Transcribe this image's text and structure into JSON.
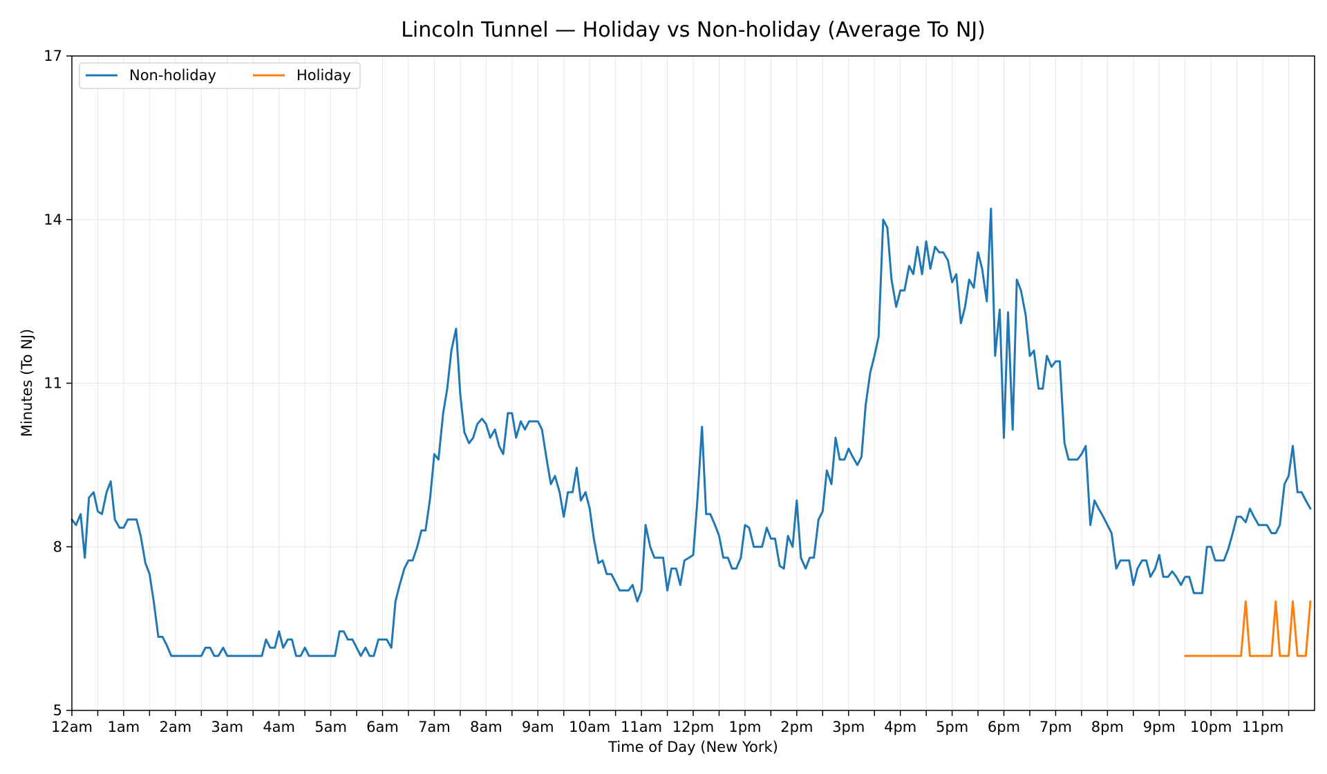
{
  "chart_data": {
    "type": "line",
    "title": "Lincoln Tunnel — Holiday vs Non-holiday (Average To NJ)",
    "xlabel": "Time of Day (New York)",
    "ylabel": "Minutes (To NJ)",
    "xlim": [
      0,
      24
    ],
    "ylim": [
      5,
      17
    ],
    "yticks": [
      5,
      8,
      11,
      14,
      17
    ],
    "xticks": [
      {
        "hour": 0,
        "label": "12am"
      },
      {
        "hour": 1,
        "label": "1am"
      },
      {
        "hour": 2,
        "label": "2am"
      },
      {
        "hour": 3,
        "label": "3am"
      },
      {
        "hour": 4,
        "label": "4am"
      },
      {
        "hour": 5,
        "label": "5am"
      },
      {
        "hour": 6,
        "label": "6am"
      },
      {
        "hour": 7,
        "label": "7am"
      },
      {
        "hour": 8,
        "label": "8am"
      },
      {
        "hour": 9,
        "label": "9am"
      },
      {
        "hour": 10,
        "label": "10am"
      },
      {
        "hour": 11,
        "label": "11am"
      },
      {
        "hour": 12,
        "label": "12pm"
      },
      {
        "hour": 13,
        "label": "1pm"
      },
      {
        "hour": 14,
        "label": "2pm"
      },
      {
        "hour": 15,
        "label": "3pm"
      },
      {
        "hour": 16,
        "label": "4pm"
      },
      {
        "hour": 17,
        "label": "5pm"
      },
      {
        "hour": 18,
        "label": "6pm"
      },
      {
        "hour": 19,
        "label": "7pm"
      },
      {
        "hour": 20,
        "label": "8pm"
      },
      {
        "hour": 21,
        "label": "9pm"
      },
      {
        "hour": 22,
        "label": "10pm"
      },
      {
        "hour": 23,
        "label": "11pm"
      }
    ],
    "minor_tick_hours": [
      0.5,
      1.5,
      2.5,
      3.5,
      4.5,
      5.5,
      6.5,
      7.5,
      8.5,
      9.5,
      10.5,
      11.5,
      12.5,
      13.5,
      14.5,
      15.5,
      16.5,
      17.5,
      18.5,
      19.5,
      20.5,
      21.5,
      22.5,
      23.5
    ],
    "grid": true,
    "legend_position": "top-left",
    "series": [
      {
        "name": "Non-holiday",
        "color": "#1f77b4",
        "points": [
          [
            0.0,
            8.5
          ],
          [
            0.08,
            8.4
          ],
          [
            0.17,
            8.6
          ],
          [
            0.25,
            7.8
          ],
          [
            0.33,
            8.9
          ],
          [
            0.42,
            9.0
          ],
          [
            0.5,
            8.65
          ],
          [
            0.58,
            8.6
          ],
          [
            0.67,
            9.0
          ],
          [
            0.75,
            9.2
          ],
          [
            0.83,
            8.5
          ],
          [
            0.92,
            8.35
          ],
          [
            1.0,
            8.35
          ],
          [
            1.08,
            8.5
          ],
          [
            1.17,
            8.5
          ],
          [
            1.25,
            8.5
          ],
          [
            1.33,
            8.2
          ],
          [
            1.42,
            7.7
          ],
          [
            1.5,
            7.5
          ],
          [
            1.58,
            7.0
          ],
          [
            1.67,
            6.35
          ],
          [
            1.75,
            6.35
          ],
          [
            1.83,
            6.2
          ],
          [
            1.92,
            6.0
          ],
          [
            2.0,
            6.0
          ],
          [
            2.5,
            6.0
          ],
          [
            2.58,
            6.15
          ],
          [
            2.67,
            6.15
          ],
          [
            2.75,
            6.0
          ],
          [
            2.83,
            6.0
          ],
          [
            2.92,
            6.15
          ],
          [
            3.0,
            6.0
          ],
          [
            3.5,
            6.0
          ],
          [
            3.67,
            6.0
          ],
          [
            3.75,
            6.3
          ],
          [
            3.83,
            6.15
          ],
          [
            3.92,
            6.15
          ],
          [
            4.0,
            6.45
          ],
          [
            4.08,
            6.15
          ],
          [
            4.17,
            6.3
          ],
          [
            4.25,
            6.3
          ],
          [
            4.33,
            6.0
          ],
          [
            4.42,
            6.0
          ],
          [
            4.5,
            6.15
          ],
          [
            4.58,
            6.0
          ],
          [
            5.0,
            6.0
          ],
          [
            5.08,
            6.0
          ],
          [
            5.17,
            6.45
          ],
          [
            5.25,
            6.45
          ],
          [
            5.33,
            6.3
          ],
          [
            5.42,
            6.3
          ],
          [
            5.5,
            6.15
          ],
          [
            5.58,
            6.0
          ],
          [
            5.67,
            6.15
          ],
          [
            5.75,
            6.0
          ],
          [
            5.83,
            6.0
          ],
          [
            5.92,
            6.3
          ],
          [
            6.0,
            6.3
          ],
          [
            6.08,
            6.3
          ],
          [
            6.17,
            6.15
          ],
          [
            6.25,
            7.0
          ],
          [
            6.33,
            7.3
          ],
          [
            6.42,
            7.6
          ],
          [
            6.5,
            7.75
          ],
          [
            6.58,
            7.75
          ],
          [
            6.67,
            8.0
          ],
          [
            6.75,
            8.3
          ],
          [
            6.83,
            8.3
          ],
          [
            6.92,
            8.9
          ],
          [
            7.0,
            9.7
          ],
          [
            7.08,
            9.6
          ],
          [
            7.17,
            10.45
          ],
          [
            7.25,
            10.9
          ],
          [
            7.33,
            11.6
          ],
          [
            7.42,
            12.0
          ],
          [
            7.5,
            10.8
          ],
          [
            7.58,
            10.1
          ],
          [
            7.67,
            9.9
          ],
          [
            7.75,
            10.0
          ],
          [
            7.83,
            10.25
          ],
          [
            7.92,
            10.35
          ],
          [
            8.0,
            10.25
          ],
          [
            8.08,
            10.0
          ],
          [
            8.17,
            10.15
          ],
          [
            8.25,
            9.85
          ],
          [
            8.33,
            9.7
          ],
          [
            8.42,
            10.45
          ],
          [
            8.5,
            10.45
          ],
          [
            8.58,
            10.0
          ],
          [
            8.67,
            10.3
          ],
          [
            8.75,
            10.15
          ],
          [
            8.83,
            10.3
          ],
          [
            8.92,
            10.3
          ],
          [
            9.0,
            10.3
          ],
          [
            9.08,
            10.15
          ],
          [
            9.17,
            9.6
          ],
          [
            9.25,
            9.15
          ],
          [
            9.33,
            9.3
          ],
          [
            9.42,
            9.0
          ],
          [
            9.5,
            8.55
          ],
          [
            9.58,
            9.0
          ],
          [
            9.67,
            9.0
          ],
          [
            9.75,
            9.45
          ],
          [
            9.83,
            8.85
          ],
          [
            9.92,
            9.0
          ],
          [
            10.0,
            8.7
          ],
          [
            10.08,
            8.15
          ],
          [
            10.17,
            7.7
          ],
          [
            10.25,
            7.75
          ],
          [
            10.33,
            7.5
          ],
          [
            10.42,
            7.5
          ],
          [
            10.5,
            7.35
          ],
          [
            10.58,
            7.2
          ],
          [
            10.67,
            7.2
          ],
          [
            10.75,
            7.2
          ],
          [
            10.83,
            7.3
          ],
          [
            10.92,
            7.0
          ],
          [
            11.0,
            7.2
          ],
          [
            11.08,
            8.4
          ],
          [
            11.17,
            8.0
          ],
          [
            11.25,
            7.8
          ],
          [
            11.33,
            7.8
          ],
          [
            11.42,
            7.8
          ],
          [
            11.5,
            7.2
          ],
          [
            11.58,
            7.6
          ],
          [
            11.67,
            7.6
          ],
          [
            11.75,
            7.3
          ],
          [
            11.83,
            7.75
          ],
          [
            11.92,
            7.8
          ],
          [
            12.0,
            7.85
          ],
          [
            12.08,
            8.85
          ],
          [
            12.17,
            10.2
          ],
          [
            12.25,
            8.6
          ],
          [
            12.33,
            8.6
          ],
          [
            12.42,
            8.4
          ],
          [
            12.5,
            8.2
          ],
          [
            12.58,
            7.8
          ],
          [
            12.67,
            7.8
          ],
          [
            12.75,
            7.6
          ],
          [
            12.83,
            7.6
          ],
          [
            12.92,
            7.8
          ],
          [
            13.0,
            8.4
          ],
          [
            13.08,
            8.35
          ],
          [
            13.17,
            8.0
          ],
          [
            13.25,
            8.0
          ],
          [
            13.33,
            8.0
          ],
          [
            13.42,
            8.35
          ],
          [
            13.5,
            8.15
          ],
          [
            13.58,
            8.15
          ],
          [
            13.67,
            7.65
          ],
          [
            13.75,
            7.6
          ],
          [
            13.83,
            8.2
          ],
          [
            13.92,
            8.0
          ],
          [
            14.0,
            8.85
          ],
          [
            14.08,
            7.8
          ],
          [
            14.17,
            7.6
          ],
          [
            14.25,
            7.8
          ],
          [
            14.33,
            7.8
          ],
          [
            14.42,
            8.5
          ],
          [
            14.5,
            8.65
          ],
          [
            14.58,
            9.4
          ],
          [
            14.67,
            9.15
          ],
          [
            14.75,
            10.0
          ],
          [
            14.83,
            9.6
          ],
          [
            14.92,
            9.6
          ],
          [
            15.0,
            9.8
          ],
          [
            15.08,
            9.65
          ],
          [
            15.17,
            9.5
          ],
          [
            15.25,
            9.65
          ],
          [
            15.33,
            10.6
          ],
          [
            15.42,
            11.2
          ],
          [
            15.5,
            11.5
          ],
          [
            15.58,
            11.85
          ],
          [
            15.67,
            14.0
          ],
          [
            15.75,
            13.85
          ],
          [
            15.83,
            12.9
          ],
          [
            15.92,
            12.4
          ],
          [
            16.0,
            12.7
          ],
          [
            16.08,
            12.7
          ],
          [
            16.17,
            13.15
          ],
          [
            16.25,
            13.0
          ],
          [
            16.33,
            13.5
          ],
          [
            16.42,
            13.0
          ],
          [
            16.5,
            13.6
          ],
          [
            16.58,
            13.1
          ],
          [
            16.67,
            13.5
          ],
          [
            16.75,
            13.4
          ],
          [
            16.83,
            13.4
          ],
          [
            16.92,
            13.25
          ],
          [
            17.0,
            12.85
          ],
          [
            17.08,
            13.0
          ],
          [
            17.17,
            12.1
          ],
          [
            17.25,
            12.4
          ],
          [
            17.33,
            12.9
          ],
          [
            17.42,
            12.75
          ],
          [
            17.5,
            13.4
          ],
          [
            17.58,
            13.1
          ],
          [
            17.67,
            12.5
          ],
          [
            17.75,
            14.2
          ],
          [
            17.83,
            11.5
          ],
          [
            17.92,
            12.35
          ],
          [
            18.0,
            10.0
          ],
          [
            18.08,
            12.3
          ],
          [
            18.17,
            10.15
          ],
          [
            18.25,
            12.9
          ],
          [
            18.33,
            12.7
          ],
          [
            18.42,
            12.25
          ],
          [
            18.5,
            11.5
          ],
          [
            18.58,
            11.6
          ],
          [
            18.67,
            10.9
          ],
          [
            18.75,
            10.9
          ],
          [
            18.83,
            11.5
          ],
          [
            18.92,
            11.3
          ],
          [
            19.0,
            11.4
          ],
          [
            19.08,
            11.4
          ],
          [
            19.17,
            9.9
          ],
          [
            19.25,
            9.6
          ],
          [
            19.33,
            9.6
          ],
          [
            19.42,
            9.6
          ],
          [
            19.5,
            9.7
          ],
          [
            19.58,
            9.85
          ],
          [
            19.67,
            8.4
          ],
          [
            19.75,
            8.85
          ],
          [
            19.83,
            8.7
          ],
          [
            19.92,
            8.55
          ],
          [
            20.0,
            8.4
          ],
          [
            20.08,
            8.25
          ],
          [
            20.17,
            7.6
          ],
          [
            20.25,
            7.75
          ],
          [
            20.33,
            7.75
          ],
          [
            20.42,
            7.75
          ],
          [
            20.5,
            7.3
          ],
          [
            20.58,
            7.6
          ],
          [
            20.67,
            7.75
          ],
          [
            20.75,
            7.75
          ],
          [
            20.83,
            7.45
          ],
          [
            20.92,
            7.6
          ],
          [
            21.0,
            7.85
          ],
          [
            21.08,
            7.45
          ],
          [
            21.17,
            7.45
          ],
          [
            21.25,
            7.55
          ],
          [
            21.33,
            7.45
          ],
          [
            21.42,
            7.3
          ],
          [
            21.5,
            7.45
          ],
          [
            21.58,
            7.45
          ],
          [
            21.67,
            7.15
          ],
          [
            21.75,
            7.15
          ],
          [
            21.83,
            7.15
          ],
          [
            21.92,
            8.0
          ],
          [
            22.0,
            8.0
          ],
          [
            22.08,
            7.75
          ],
          [
            22.17,
            7.75
          ],
          [
            22.25,
            7.75
          ],
          [
            22.33,
            7.95
          ],
          [
            22.42,
            8.25
          ],
          [
            22.5,
            8.55
          ],
          [
            22.58,
            8.55
          ],
          [
            22.67,
            8.45
          ],
          [
            22.75,
            8.7
          ],
          [
            22.83,
            8.55
          ],
          [
            22.92,
            8.4
          ],
          [
            23.0,
            8.4
          ],
          [
            23.08,
            8.4
          ],
          [
            23.17,
            8.25
          ],
          [
            23.25,
            8.25
          ],
          [
            23.33,
            8.4
          ],
          [
            23.42,
            9.15
          ],
          [
            23.5,
            9.3
          ],
          [
            23.58,
            9.85
          ],
          [
            23.67,
            9.0
          ],
          [
            23.75,
            9.0
          ],
          [
            23.83,
            8.85
          ],
          [
            23.92,
            8.7
          ]
        ]
      },
      {
        "name": "Holiday",
        "color": "#ff7f0e",
        "points": [
          [
            21.5,
            6.0
          ],
          [
            22.0,
            6.0
          ],
          [
            22.5,
            6.0
          ],
          [
            22.58,
            6.0
          ],
          [
            22.67,
            7.0
          ],
          [
            22.75,
            6.0
          ],
          [
            22.83,
            6.0
          ],
          [
            23.0,
            6.0
          ],
          [
            23.17,
            6.0
          ],
          [
            23.25,
            7.0
          ],
          [
            23.33,
            6.0
          ],
          [
            23.42,
            6.0
          ],
          [
            23.5,
            6.0
          ],
          [
            23.58,
            7.0
          ],
          [
            23.67,
            6.0
          ],
          [
            23.75,
            6.0
          ],
          [
            23.83,
            6.0
          ],
          [
            23.92,
            7.0
          ]
        ]
      }
    ]
  }
}
